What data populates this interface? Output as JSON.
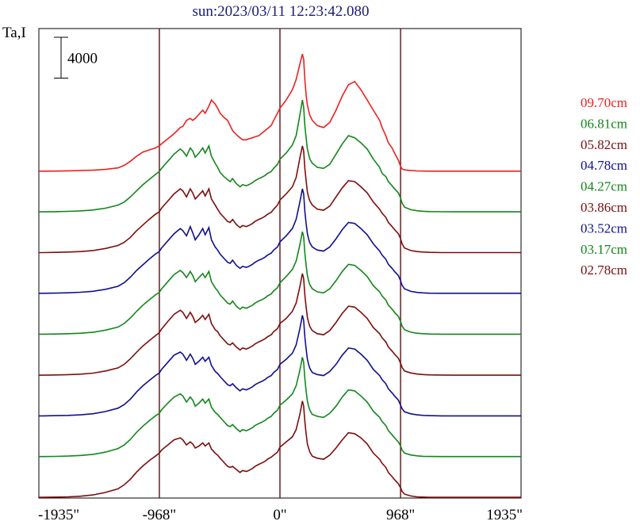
{
  "chart_data": {
    "type": "line",
    "title": "sun:2023/03/11 12:23:42.080",
    "ylabel": "Ta,I",
    "xlabel": "",
    "x_ticks": [
      {
        "value": -1935,
        "label": "-1935\""
      },
      {
        "value": -968,
        "label": "-968\""
      },
      {
        "value": 0,
        "label": "0\""
      },
      {
        "value": 968,
        "label": "968\""
      },
      {
        "value": 1935,
        "label": "1935\""
      }
    ],
    "xlim": [
      -1935,
      1935
    ],
    "ylim": [
      0,
      46000
    ],
    "vertical_lines": [
      -968,
      0,
      968
    ],
    "scale_bar": {
      "value": 4000,
      "label": "4000"
    },
    "series_offset": 4000,
    "grid": false,
    "legend_position": "right",
    "x": [
      -1935,
      -1900,
      -1800,
      -1700,
      -1600,
      -1500,
      -1400,
      -1300,
      -1250,
      -1200,
      -1150,
      -1100,
      -1050,
      -1000,
      -968,
      -950,
      -900,
      -850,
      -800,
      -780,
      -750,
      -720,
      -700,
      -680,
      -650,
      -620,
      -600,
      -570,
      -550,
      -520,
      -500,
      -480,
      -450,
      -420,
      -400,
      -380,
      -350,
      -320,
      -300,
      -270,
      -250,
      -220,
      -200,
      -170,
      -150,
      -120,
      -100,
      -70,
      -50,
      -20,
      0,
      50,
      100,
      130,
      160,
      180,
      190,
      200,
      210,
      220,
      230,
      240,
      260,
      300,
      350,
      400,
      450,
      500,
      550,
      600,
      650,
      700,
      750,
      800,
      820,
      850,
      870,
      900,
      920,
      950,
      968,
      980,
      1000,
      1050,
      1100,
      1150,
      1200,
      1300,
      1400,
      1500,
      1600,
      1700,
      1800,
      1900,
      1935
    ],
    "series": [
      {
        "name": "09.70cm",
        "color": "#ee2020",
        "values": [
          30,
          30,
          40,
          60,
          80,
          120,
          200,
          350,
          600,
          1000,
          1500,
          1900,
          2100,
          2300,
          2500,
          2700,
          3200,
          3700,
          4300,
          4400,
          5000,
          5200,
          5000,
          5200,
          5600,
          6000,
          5700,
          6400,
          7000,
          6600,
          6200,
          5700,
          5300,
          5000,
          4500,
          4000,
          3600,
          3300,
          3100,
          3100,
          3200,
          3300,
          3400,
          3500,
          3700,
          4000,
          4200,
          4500,
          5000,
          5700,
          6200,
          7000,
          8000,
          9000,
          10500,
          11500,
          11000,
          9000,
          7500,
          6500,
          6000,
          5500,
          5000,
          4500,
          4300,
          4800,
          6000,
          7400,
          8500,
          8800,
          8000,
          7000,
          6000,
          5000,
          4300,
          3500,
          2800,
          2300,
          1800,
          1100,
          500,
          250,
          150,
          80,
          50,
          40,
          30,
          30,
          30,
          30,
          30,
          30,
          30,
          30,
          30
        ]
      },
      {
        "name": "06.81cm",
        "color": "#12871a",
        "values": [
          40,
          40,
          60,
          90,
          140,
          220,
          400,
          700,
          1000,
          1500,
          2100,
          2700,
          3200,
          3700,
          4000,
          4300,
          5000,
          5700,
          6200,
          6000,
          5500,
          6300,
          6000,
          5400,
          5800,
          6300,
          5800,
          6500,
          5500,
          4800,
          4400,
          3900,
          3500,
          3200,
          3000,
          3300,
          2800,
          2500,
          2700,
          2600,
          2700,
          2900,
          3100,
          3300,
          3400,
          3600,
          3800,
          4000,
          4300,
          4700,
          5200,
          5800,
          6600,
          7500,
          9500,
          11000,
          10300,
          8500,
          7300,
          6200,
          5700,
          5200,
          4800,
          4400,
          4300,
          4700,
          5700,
          6700,
          7500,
          7300,
          6800,
          6200,
          5200,
          4400,
          3800,
          3500,
          3000,
          2600,
          2300,
          1900,
          1400,
          900,
          500,
          250,
          150,
          100,
          70,
          50,
          40,
          40,
          40,
          40,
          40,
          40,
          40
        ]
      },
      {
        "name": "05.82cm",
        "color": "#7d0e0e",
        "values": [
          50,
          50,
          70,
          100,
          150,
          250,
          450,
          750,
          1050,
          1550,
          2200,
          2750,
          3300,
          3800,
          4050,
          4400,
          5100,
          5800,
          6300,
          6100,
          5500,
          6300,
          5900,
          5300,
          5700,
          6100,
          5600,
          6300,
          5300,
          4700,
          4300,
          3900,
          3500,
          3100,
          3000,
          3300,
          2800,
          2500,
          2700,
          2600,
          2700,
          2900,
          3100,
          3300,
          3400,
          3600,
          3800,
          4000,
          4300,
          4700,
          5200,
          5800,
          6500,
          7400,
          9300,
          10500,
          10000,
          8300,
          7100,
          6000,
          5500,
          5100,
          4700,
          4300,
          4200,
          4600,
          5500,
          6400,
          7100,
          7000,
          6500,
          5900,
          5000,
          4300,
          3900,
          3500,
          3000,
          2600,
          2300,
          1900,
          1400,
          900,
          500,
          250,
          150,
          100,
          70,
          50,
          50,
          50,
          50,
          50,
          50,
          50,
          50
        ]
      },
      {
        "name": "04.78cm",
        "color": "#101090",
        "values": [
          60,
          60,
          80,
          110,
          160,
          260,
          450,
          750,
          1100,
          1650,
          2300,
          2850,
          3400,
          3900,
          4150,
          4500,
          5200,
          5900,
          6400,
          6200,
          5700,
          6600,
          6000,
          5300,
          5800,
          6400,
          5800,
          6500,
          5300,
          4600,
          4300,
          3900,
          3500,
          3100,
          3000,
          3300,
          2800,
          2500,
          2700,
          2600,
          2700,
          2900,
          3100,
          3300,
          3400,
          3600,
          3800,
          4000,
          4300,
          4600,
          5100,
          5700,
          6400,
          7300,
          9000,
          10300,
          9800,
          8100,
          6900,
          5900,
          5400,
          5000,
          4600,
          4300,
          4200,
          4600,
          5400,
          6300,
          7000,
          6900,
          6400,
          5800,
          4900,
          4200,
          3800,
          3400,
          2900,
          2500,
          2200,
          1800,
          1300,
          850,
          500,
          250,
          150,
          100,
          70,
          60,
          60,
          60,
          60,
          60,
          60,
          60,
          60
        ]
      },
      {
        "name": "04.27cm",
        "color": "#12871a",
        "values": [
          50,
          50,
          70,
          100,
          150,
          250,
          450,
          750,
          1100,
          1650,
          2300,
          2900,
          3400,
          3900,
          4150,
          4500,
          5200,
          5900,
          6300,
          6100,
          5600,
          6200,
          5800,
          5200,
          5600,
          6000,
          5600,
          6200,
          5200,
          4600,
          4300,
          3900,
          3500,
          3100,
          3000,
          3300,
          2800,
          2500,
          2700,
          2600,
          2700,
          2900,
          3100,
          3300,
          3400,
          3600,
          3800,
          4000,
          4300,
          4600,
          5100,
          5700,
          6400,
          7200,
          8800,
          10100,
          9600,
          8000,
          6800,
          5800,
          5300,
          4900,
          4500,
          4200,
          4100,
          4500,
          5300,
          6200,
          6900,
          6800,
          6300,
          5700,
          4800,
          4200,
          3800,
          3400,
          2900,
          2500,
          2200,
          1800,
          1300,
          850,
          500,
          250,
          150,
          100,
          70,
          50,
          50,
          50,
          50,
          50,
          50,
          50,
          50
        ]
      },
      {
        "name": "03.86cm",
        "color": "#7d0e0e",
        "values": [
          40,
          40,
          60,
          90,
          140,
          240,
          450,
          750,
          1100,
          1650,
          2300,
          2900,
          3400,
          3900,
          4200,
          4550,
          5300,
          6000,
          6400,
          6200,
          5600,
          6200,
          5800,
          5200,
          5500,
          5900,
          5500,
          6000,
          5100,
          4500,
          4300,
          3900,
          3500,
          3100,
          3000,
          3200,
          2800,
          2500,
          2700,
          2600,
          2700,
          2900,
          3100,
          3300,
          3400,
          3600,
          3800,
          4000,
          4300,
          4600,
          5100,
          5600,
          6300,
          7100,
          8700,
          10000,
          9500,
          7900,
          6700,
          5700,
          5200,
          4800,
          4400,
          4100,
          4000,
          4400,
          5200,
          6100,
          6800,
          6700,
          6200,
          5600,
          4700,
          4100,
          3700,
          3300,
          2800,
          2400,
          2100,
          1700,
          1200,
          800,
          450,
          250,
          150,
          100,
          70,
          50,
          40,
          40,
          40,
          40,
          40,
          40,
          40
        ]
      },
      {
        "name": "03.52cm",
        "color": "#101090",
        "values": [
          50,
          50,
          70,
          100,
          150,
          260,
          480,
          800,
          1150,
          1700,
          2400,
          3000,
          3500,
          4000,
          4250,
          4600,
          5300,
          6000,
          6300,
          6100,
          5500,
          6100,
          5700,
          5100,
          5400,
          5800,
          5400,
          5800,
          5000,
          4400,
          4200,
          3900,
          3500,
          3100,
          3000,
          3200,
          2800,
          2500,
          2700,
          2600,
          2700,
          2900,
          3100,
          3300,
          3400,
          3600,
          3800,
          4000,
          4300,
          4600,
          5100,
          5600,
          6200,
          7000,
          8600,
          9900,
          9400,
          7800,
          6600,
          5600,
          5100,
          4700,
          4300,
          4100,
          4000,
          4400,
          5100,
          6000,
          6700,
          6600,
          6100,
          5500,
          4600,
          4000,
          3600,
          3200,
          2700,
          2300,
          2000,
          1600,
          1100,
          750,
          450,
          250,
          150,
          100,
          70,
          50,
          50,
          50,
          50,
          50,
          50,
          50,
          50
        ]
      },
      {
        "name": "03.17cm",
        "color": "#12871a",
        "values": [
          60,
          60,
          80,
          110,
          170,
          280,
          500,
          850,
          1200,
          1750,
          2450,
          3050,
          3550,
          4050,
          4300,
          4650,
          5300,
          5900,
          6200,
          6000,
          5400,
          5900,
          5600,
          5000,
          5300,
          5700,
          5300,
          5700,
          4900,
          4400,
          4200,
          3900,
          3500,
          3100,
          3000,
          3200,
          2800,
          2500,
          2700,
          2600,
          2700,
          2900,
          3100,
          3300,
          3400,
          3600,
          3800,
          4000,
          4300,
          4600,
          5100,
          5600,
          6200,
          7000,
          8500,
          9800,
          9300,
          7700,
          6500,
          5500,
          5000,
          4600,
          4200,
          4000,
          3900,
          4300,
          5000,
          5900,
          6600,
          6500,
          6000,
          5400,
          4500,
          3900,
          3500,
          3100,
          2600,
          2200,
          1900,
          1500,
          1100,
          700,
          400,
          220,
          130,
          90,
          70,
          60,
          60,
          60,
          60,
          60,
          60,
          60,
          60
        ]
      },
      {
        "name": "02.78cm",
        "color": "#7d0e0e",
        "values": [
          70,
          70,
          90,
          120,
          180,
          300,
          550,
          900,
          1300,
          1850,
          2550,
          3150,
          3650,
          4100,
          4400,
          4700,
          5200,
          5700,
          5900,
          5700,
          5200,
          5500,
          5300,
          4900,
          5100,
          5400,
          5100,
          5400,
          4800,
          4400,
          4200,
          3900,
          3500,
          3100,
          3000,
          3100,
          2800,
          2500,
          2700,
          2600,
          2700,
          2900,
          3100,
          3300,
          3400,
          3600,
          3800,
          4000,
          4200,
          4500,
          5000,
          5500,
          6000,
          6700,
          8200,
          9500,
          9000,
          7500,
          6300,
          5300,
          4900,
          4500,
          4100,
          3900,
          3800,
          4200,
          4900,
          5700,
          6400,
          6300,
          5900,
          5300,
          4400,
          3800,
          3400,
          3000,
          2500,
          2100,
          1800,
          1400,
          1000,
          650,
          380,
          200,
          120,
          90,
          70,
          70,
          70,
          70,
          70,
          70,
          70,
          70,
          70
        ]
      }
    ]
  }
}
